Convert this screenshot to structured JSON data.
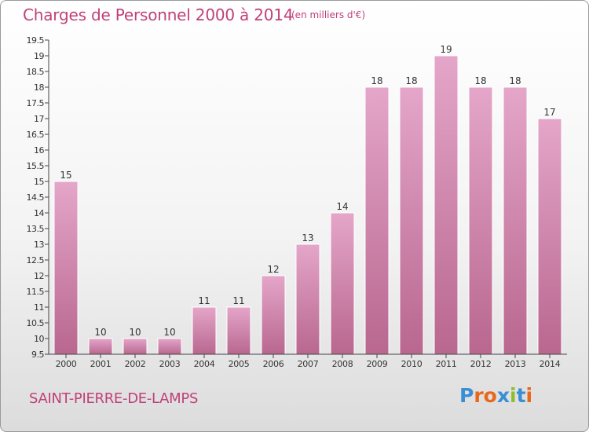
{
  "header": {
    "title": "Charges de Personnel 2000 à 2014",
    "subtitle": "(en milliers d'€)"
  },
  "footer": {
    "commune": "SAINT-PIERRE-DE-LAMPS",
    "logo_text": "Proxiti"
  },
  "colors": {
    "accent": "#c0407a",
    "bar_light": "#e4a6c9",
    "bar_dark": "#b9678f",
    "logo": [
      "#3a8fd4",
      "#e8681a",
      "#e8681a",
      "#3a8fd4",
      "#8cbf2e",
      "#3a8fd4",
      "#e8681a"
    ]
  },
  "chart_data": {
    "type": "bar",
    "categories": [
      "2000",
      "2001",
      "2002",
      "2003",
      "2004",
      "2005",
      "2006",
      "2007",
      "2008",
      "2009",
      "2010",
      "2011",
      "2012",
      "2013",
      "2014"
    ],
    "values": [
      15,
      10,
      10,
      10,
      11,
      11,
      12,
      13,
      14,
      18,
      18,
      19,
      18,
      18,
      17
    ],
    "data_labels": [
      "15",
      "10",
      "10",
      "10",
      "11",
      "11",
      "12",
      "13",
      "14",
      "18",
      "18",
      "19",
      "18",
      "18",
      "17"
    ],
    "y_ticks": [
      "9.5",
      "10",
      "10.5",
      "11",
      "11.5",
      "12",
      "12.5",
      "13",
      "13.5",
      "14",
      "14.5",
      "15",
      "15.5",
      "16",
      "16.5",
      "17",
      "17.5",
      "18",
      "18.5",
      "19",
      "19.5"
    ],
    "ylim": [
      9.5,
      19.5
    ],
    "title": "Charges de Personnel 2000 à 2014",
    "xlabel": "",
    "ylabel": "",
    "grid": false,
    "legend": "none"
  }
}
